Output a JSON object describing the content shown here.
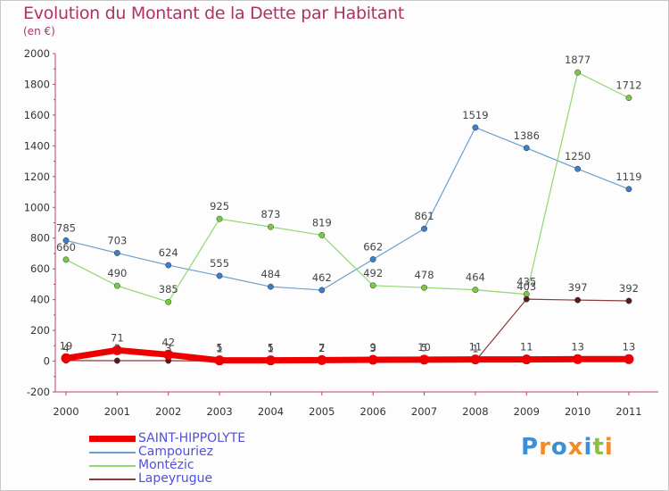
{
  "title": "Evolution du Montant de la Dette par Habitant",
  "subtitle": "(en €)",
  "logo": {
    "letters": [
      "P",
      "r",
      "o",
      "x",
      "i",
      "t",
      "i"
    ],
    "colors": [
      "#3b8fd6",
      "#f28c28",
      "#3b8fd6",
      "#f28c28",
      "#3b8fd6",
      "#8bbf3f",
      "#f28c28"
    ]
  },
  "chart_data": {
    "type": "line",
    "x": [
      "2000",
      "2001",
      "2002",
      "2003",
      "2004",
      "2005",
      "2006",
      "2007",
      "2008",
      "2009",
      "2010",
      "2011"
    ],
    "ylim": [
      -200,
      2000
    ],
    "yticks": [
      -200,
      0,
      200,
      400,
      600,
      800,
      1000,
      1200,
      1400,
      1600,
      1800,
      2000
    ],
    "grid": false,
    "legend": "bottom-left",
    "series": [
      {
        "name": "Campouriez",
        "color": "#6a9fd0",
        "marker": "#3a7fc8",
        "width": 1.2,
        "values": [
          785,
          703,
          624,
          555,
          484,
          462,
          662,
          861,
          1519,
          1386,
          1250,
          1119
        ],
        "labels": [
          "785",
          "703",
          "624",
          "555",
          "484",
          "462",
          "662",
          "861",
          "1519",
          "1386",
          "1250",
          "1119"
        ]
      },
      {
        "name": "Montézic",
        "color": "#8fd96f",
        "marker": "#7ac943",
        "width": 1.2,
        "values": [
          660,
          490,
          385,
          925,
          873,
          819,
          492,
          478,
          464,
          435,
          1877,
          1712
        ],
        "labels": [
          "660",
          "490",
          "385",
          "925",
          "873",
          "819",
          "492",
          "478",
          "464",
          "435",
          "1877",
          "1712"
        ]
      },
      {
        "name": "Lapeyrugue",
        "color": "#8b3a3a",
        "marker": "#5a1a1a",
        "width": 1.2,
        "values": [
          4,
          3,
          3,
          1,
          1,
          2,
          3,
          5,
          1,
          403,
          397,
          392
        ],
        "labels": [
          "4",
          "3",
          "3",
          "1",
          "1",
          "2",
          "3",
          "5",
          "1",
          "403",
          "397",
          "392"
        ]
      },
      {
        "name": "SAINT-HIPPOLYTE",
        "color": "#ee0000",
        "marker": "#ee0000",
        "width": 7,
        "values": [
          19,
          71,
          42,
          5,
          5,
          7,
          9,
          10,
          11,
          11,
          13,
          13
        ],
        "labels": [
          "19",
          "71",
          "42",
          "5",
          "5",
          "7",
          "9",
          "10",
          "11",
          "11",
          "13",
          "13"
        ]
      }
    ]
  }
}
